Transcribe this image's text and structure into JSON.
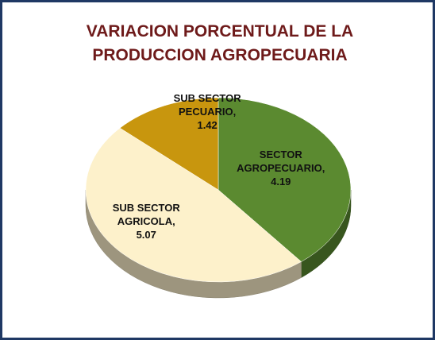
{
  "chart_data": {
    "type": "pie",
    "title": "VARIACION PORCENTUAL DE LA PRODUCCION AGROPECUARIA",
    "categories": [
      "SECTOR AGROPECUARIO,",
      "SUB SECTOR AGRICOLA,",
      "SUB SECTOR PECUARIO,"
    ],
    "values": [
      4.19,
      5.07,
      1.42
    ],
    "colors": [
      "#5b8a30",
      "#fdf1cb",
      "#c8960e"
    ]
  }
}
